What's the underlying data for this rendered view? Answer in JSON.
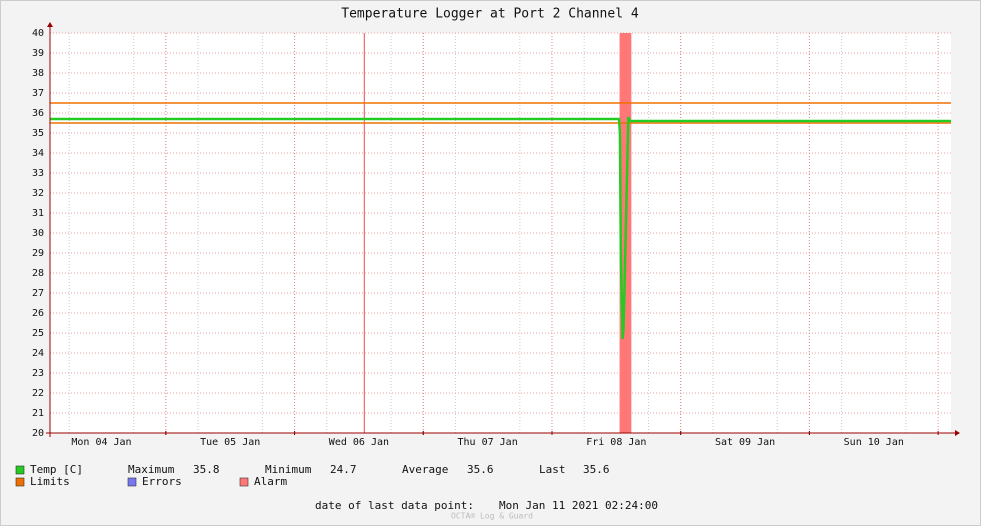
{
  "chart_data": {
    "type": "line",
    "title": "Temperature Logger at Port 2 Channel 4",
    "xlim": [
      "2021-01-04T02:24",
      "2021-01-11T02:24"
    ],
    "xticks": [
      {
        "value": "2021-01-04T12:00",
        "label": "Mon 04 Jan"
      },
      {
        "value": "2021-01-05T12:00",
        "label": "Tue 05 Jan"
      },
      {
        "value": "2021-01-06T12:00",
        "label": "Wed 06 Jan"
      },
      {
        "value": "2021-01-07T12:00",
        "label": "Thu 07 Jan"
      },
      {
        "value": "2021-01-08T12:00",
        "label": "Fri 08 Jan"
      },
      {
        "value": "2021-01-09T12:00",
        "label": "Sat 09 Jan"
      },
      {
        "value": "2021-01-10T12:00",
        "label": "Sun 10 Jan"
      }
    ],
    "ylim": [
      20,
      40
    ],
    "yticks": [
      20,
      21,
      22,
      23,
      24,
      25,
      26,
      27,
      28,
      29,
      30,
      31,
      32,
      33,
      34,
      35,
      36,
      37,
      38,
      39,
      40
    ],
    "grid": true,
    "x": [
      "2021-01-04T02:24",
      "2021-01-04T12:00",
      "2021-01-05T00:00",
      "2021-01-05T12:00",
      "2021-01-06T00:00",
      "2021-01-06T12:00",
      "2021-01-07T00:00",
      "2021-01-07T12:00",
      "2021-01-08T00:00",
      "2021-01-08T12:30",
      "2021-01-08T12:40",
      "2021-01-08T12:50",
      "2021-01-08T13:00",
      "2021-01-08T13:10",
      "2021-01-08T13:20",
      "2021-01-08T13:30",
      "2021-01-08T13:45",
      "2021-01-08T14:05",
      "2021-01-08T14:15",
      "2021-01-08T14:30",
      "2021-01-09T00:00",
      "2021-01-10T00:00",
      "2021-01-11T02:24"
    ],
    "series": [
      {
        "name": "Temp [C]",
        "color": "#22cc22",
        "values": [
          35.7,
          35.7,
          35.7,
          35.7,
          35.7,
          35.7,
          35.7,
          35.7,
          35.7,
          35.7,
          35.0,
          29.0,
          26.8,
          24.7,
          25.2,
          27.0,
          30.0,
          34.0,
          35.8,
          35.6,
          35.6,
          35.6,
          35.6
        ]
      }
    ],
    "limits": {
      "name": "Limits",
      "color": "#ee7000",
      "values": [
        35.5,
        36.5
      ]
    },
    "errors": {
      "name": "Errors",
      "color": "#7777ee"
    },
    "alarm": {
      "name": "Alarm",
      "color": "#ff7777",
      "ranges": [
        [
          "2021-01-08T12:36",
          "2021-01-08T14:48"
        ]
      ]
    },
    "events": [
      "2021-01-06T13:00"
    ],
    "summary": [
      {
        "label": "Maximum",
        "value": 35.8
      },
      {
        "label": "Minimum",
        "value": 24.7
      },
      {
        "label": "Average",
        "value": 35.6
      },
      {
        "label": "Last",
        "value": 35.6
      }
    ],
    "footer_label": "date of last data point:",
    "footer_value": "Mon Jan 11 2021 02:24:00",
    "watermark": "OCTA® Log & Guard"
  }
}
